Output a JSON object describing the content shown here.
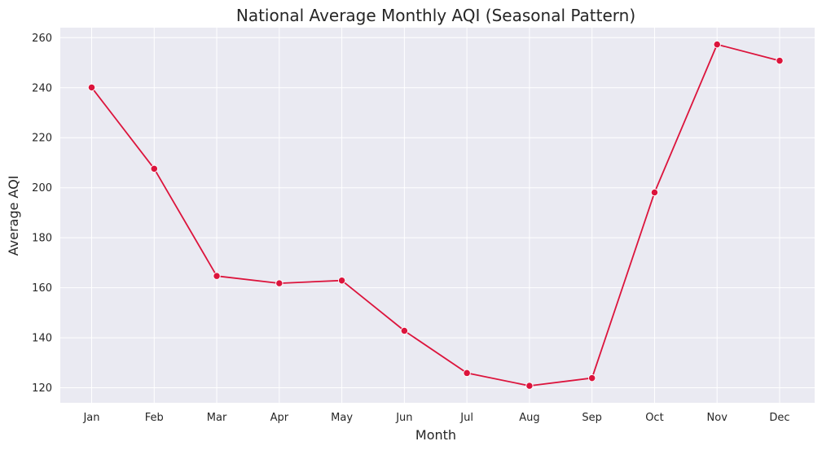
{
  "chart_data": {
    "type": "line",
    "title": "National Average Monthly AQI (Seasonal Pattern)",
    "xlabel": "Month",
    "ylabel": "Average AQI",
    "categories": [
      "Jan",
      "Feb",
      "Mar",
      "Apr",
      "May",
      "Jun",
      "Jul",
      "Aug",
      "Sep",
      "Oct",
      "Nov",
      "Dec"
    ],
    "series": [
      {
        "values": [
          240.1,
          207.6,
          164.7,
          161.8,
          162.9,
          142.8,
          125.9,
          120.8,
          123.9,
          198.1,
          257.3,
          250.8
        ],
        "color": "#dc143c"
      }
    ],
    "yticks": [
      120,
      140,
      160,
      180,
      200,
      220,
      240,
      260
    ],
    "ylim": [
      114,
      264
    ],
    "grid": true,
    "background_color": "#eaeaf2",
    "grid_color": "#ffffff",
    "marker": "circle"
  }
}
